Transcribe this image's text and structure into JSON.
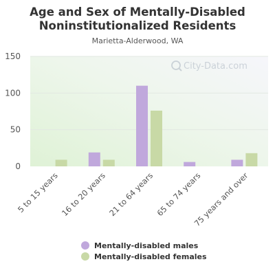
{
  "chart_data": {
    "type": "bar",
    "title": "Age and Sex of Mentally-Disabled Noninstitutionalized Residents",
    "subtitle": "Marietta-Alderwood, WA",
    "categories": [
      "5 to 15 years",
      "16 to 20 years",
      "21 to 64 years",
      "65 to 74 years",
      "75 years and over"
    ],
    "series": [
      {
        "name": "Mentally-disabled males",
        "color": "#c0a8dc",
        "values": [
          0,
          19,
          110,
          6,
          9
        ]
      },
      {
        "name": "Mentally-disabled females",
        "color": "#c8d9a6",
        "values": [
          9,
          9,
          76,
          0,
          18
        ]
      }
    ],
    "ylim": [
      0,
      150
    ],
    "yticks": [
      0,
      50,
      100,
      150
    ],
    "xlabel": "",
    "ylabel": "",
    "grid": true,
    "legend_position": "bottom",
    "watermark": "City-Data.com"
  }
}
